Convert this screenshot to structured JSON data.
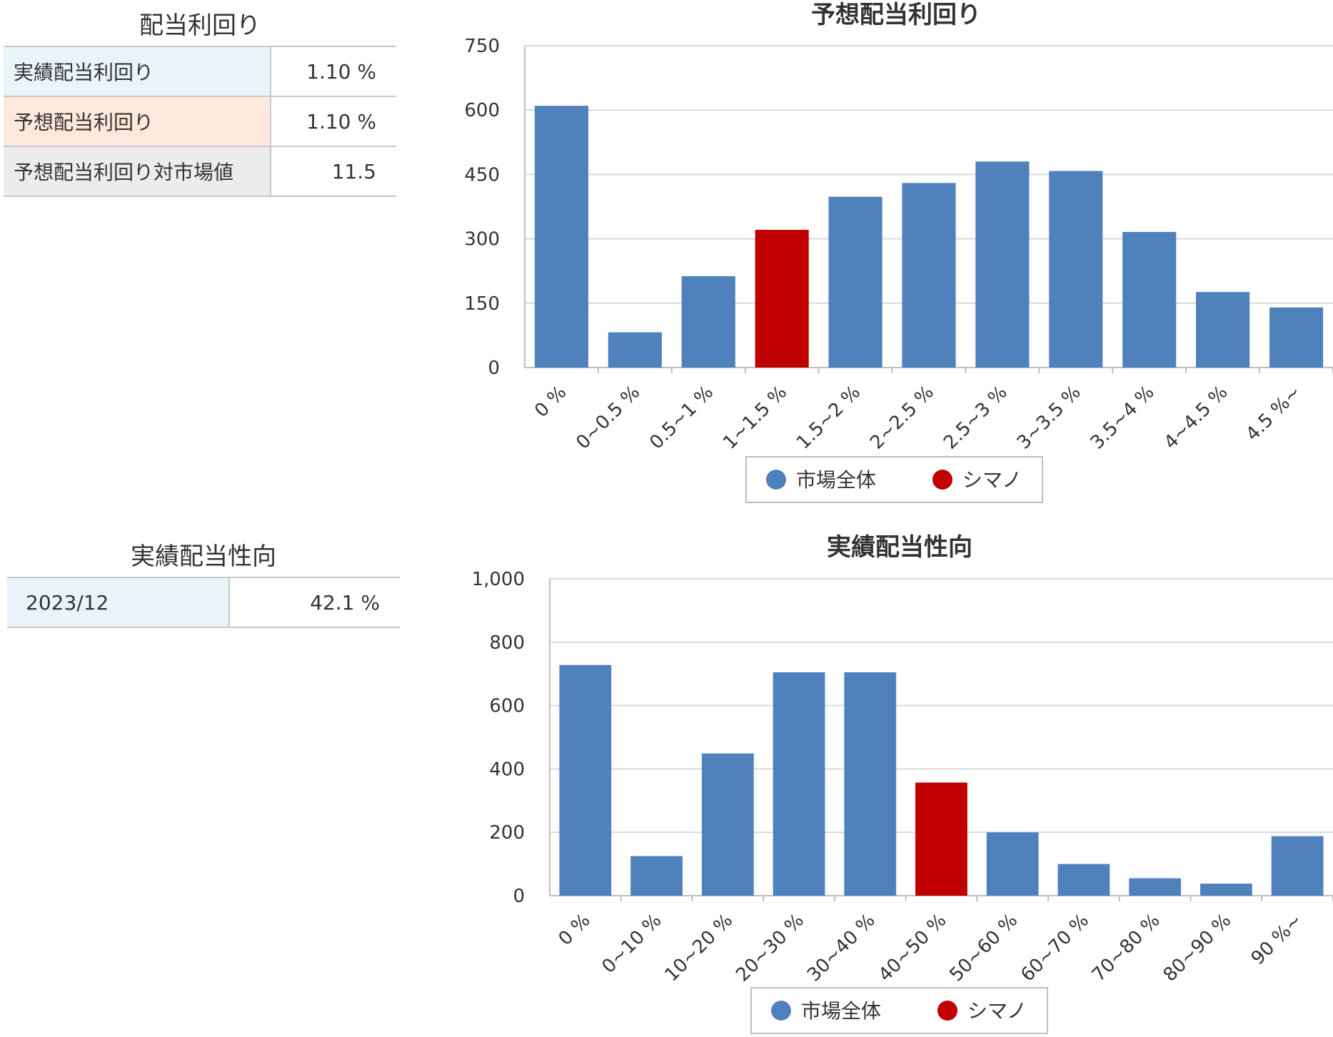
{
  "yield_table": {
    "title": "配当利回り",
    "rows": [
      {
        "label": "実績配当利回り",
        "value": "1.10 %",
        "style": "blue"
      },
      {
        "label": "予想配当利回り",
        "value": "1.10 %",
        "style": "orange"
      },
      {
        "label": "予想配当利回り対市場値",
        "value": "11.5",
        "style": "gray"
      }
    ]
  },
  "payout_table": {
    "title": "実績配当性向",
    "rows": [
      {
        "label": "2023/12",
        "value": "42.1 %",
        "style": "blue"
      }
    ]
  },
  "colors": {
    "market": "#4f81bd",
    "company": "#c00000",
    "grid": "#d9d9d9",
    "axis": "#bfbfbf"
  },
  "chart_data": [
    {
      "type": "bar",
      "title": "予想配当利回り",
      "categories": [
        "0 %",
        "0~0.5 %",
        "0.5~1 %",
        "1~1.5 %",
        "1.5~2 %",
        "2~2.5 %",
        "2.5~3 %",
        "3~3.5 %",
        "3.5~4 %",
        "4~4.5 %",
        "4.5 %~"
      ],
      "values": [
        610,
        82,
        213,
        321,
        398,
        430,
        480,
        458,
        316,
        176,
        140
      ],
      "highlight_index": 3,
      "ylim": [
        0,
        750
      ],
      "yticks": [
        0,
        150,
        300,
        450,
        600,
        750
      ],
      "ytick_labels": [
        "0",
        "150",
        "300",
        "450",
        "600",
        "750"
      ],
      "grid": true,
      "legend": {
        "position": "bottom",
        "items": [
          {
            "name": "市場全体",
            "color": "#4f81bd"
          },
          {
            "name": "シマノ",
            "color": "#c00000"
          }
        ]
      }
    },
    {
      "type": "bar",
      "title": "実績配当性向",
      "categories": [
        "0 %",
        "0~10 %",
        "10~20 %",
        "20~30 %",
        "30~40 %",
        "40~50 %",
        "50~60 %",
        "60~70 %",
        "70~80 %",
        "80~90 %",
        "90 %~"
      ],
      "values": [
        728,
        125,
        449,
        705,
        705,
        357,
        200,
        100,
        55,
        38,
        188
      ],
      "highlight_index": 5,
      "ylim": [
        0,
        1000
      ],
      "yticks": [
        0,
        200,
        400,
        600,
        800,
        1000
      ],
      "ytick_labels": [
        "0",
        "200",
        "400",
        "600",
        "800",
        "1,000"
      ],
      "grid": true,
      "legend": {
        "position": "bottom",
        "items": [
          {
            "name": "市場全体",
            "color": "#4f81bd"
          },
          {
            "name": "シマノ",
            "color": "#c00000"
          }
        ]
      }
    }
  ]
}
